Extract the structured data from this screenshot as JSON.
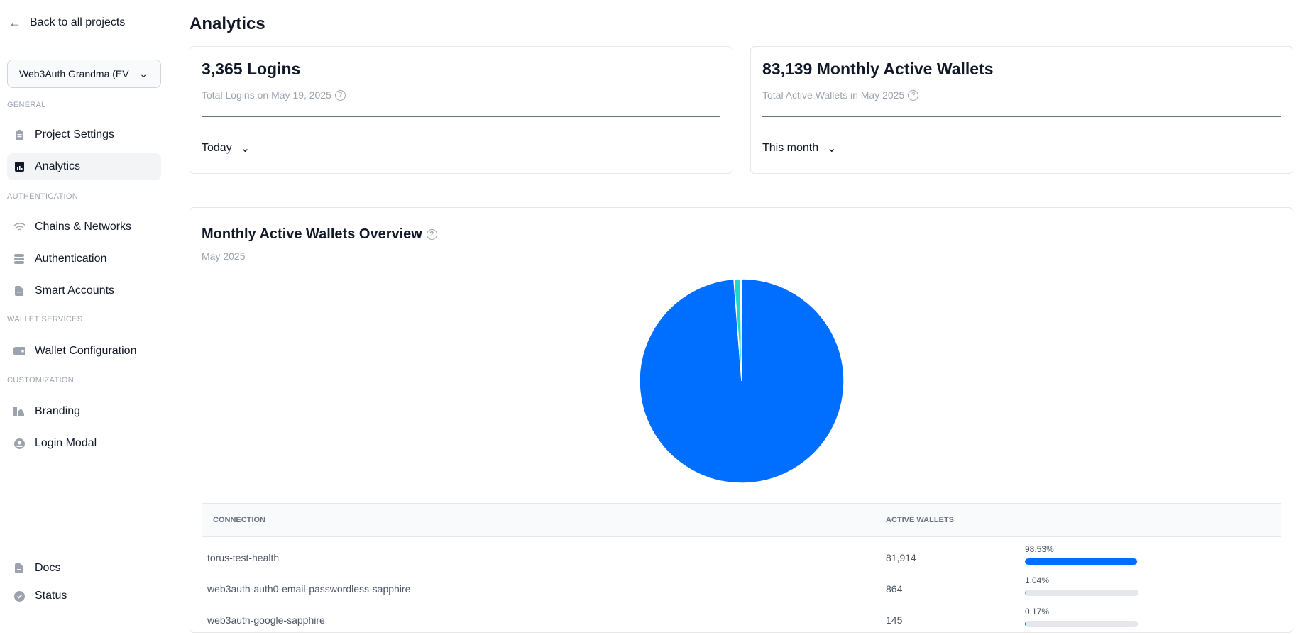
{
  "sidebar": {
    "back_label": "Back to all projects",
    "project_selector": "Web3Auth Grandma (EV",
    "sections": [
      {
        "title": "GENERAL",
        "items": [
          {
            "label": "Project Settings",
            "icon": "clipboard-icon"
          },
          {
            "label": "Analytics",
            "icon": "chart-icon",
            "active": true
          }
        ]
      },
      {
        "title": "AUTHENTICATION",
        "items": [
          {
            "label": "Chains & Networks",
            "icon": "wifi-icon"
          },
          {
            "label": "Authentication",
            "icon": "database-icon"
          },
          {
            "label": "Smart Accounts",
            "icon": "document-icon"
          }
        ]
      },
      {
        "title": "WALLET SERVICES",
        "items": [
          {
            "label": "Wallet Configuration",
            "icon": "wallet-icon"
          }
        ]
      },
      {
        "title": "CUSTOMIZATION",
        "items": [
          {
            "label": "Branding",
            "icon": "palette-icon"
          },
          {
            "label": "Login Modal",
            "icon": "user-circle-icon"
          }
        ]
      }
    ],
    "footer": [
      {
        "label": "Docs",
        "icon": "document-icon"
      },
      {
        "label": "Status",
        "icon": "check-badge-icon"
      }
    ]
  },
  "page": {
    "title": "Analytics"
  },
  "stats": [
    {
      "title": "3,365 Logins",
      "subtitle": "Total Logins on May 19, 2025",
      "period": "Today"
    },
    {
      "title": "83,139 Monthly Active Wallets",
      "subtitle": "Total Active Wallets in May 2025",
      "period": "This month"
    }
  ],
  "overview": {
    "title": "Monthly Active Wallets Overview",
    "subtitle": "May 2025"
  },
  "chart_data": {
    "type": "pie",
    "title": "Monthly Active Wallets Overview",
    "categories": [
      "torus-test-health",
      "web3auth-auth0-email-passwordless-sapphire",
      "web3auth-google-sapphire"
    ],
    "values": [
      81914,
      864,
      145
    ],
    "colors": [
      "#006EFF",
      "#1ED9C6",
      "#006EFF"
    ]
  },
  "table": {
    "headers": [
      "CONNECTION",
      "ACTIVE WALLETS"
    ],
    "rows": [
      {
        "connection": "torus-test-health",
        "wallets": "81,914",
        "percent": "98.53%",
        "fraction": 0.9853,
        "color": "#006EFF"
      },
      {
        "connection": "web3auth-auth0-email-passwordless-sapphire",
        "wallets": "864",
        "percent": "1.04%",
        "fraction": 0.0104,
        "color": "#1ED9C6"
      },
      {
        "connection": "web3auth-google-sapphire",
        "wallets": "145",
        "percent": "0.17%",
        "fraction": 0.0017,
        "color": "#006EFF"
      }
    ]
  }
}
